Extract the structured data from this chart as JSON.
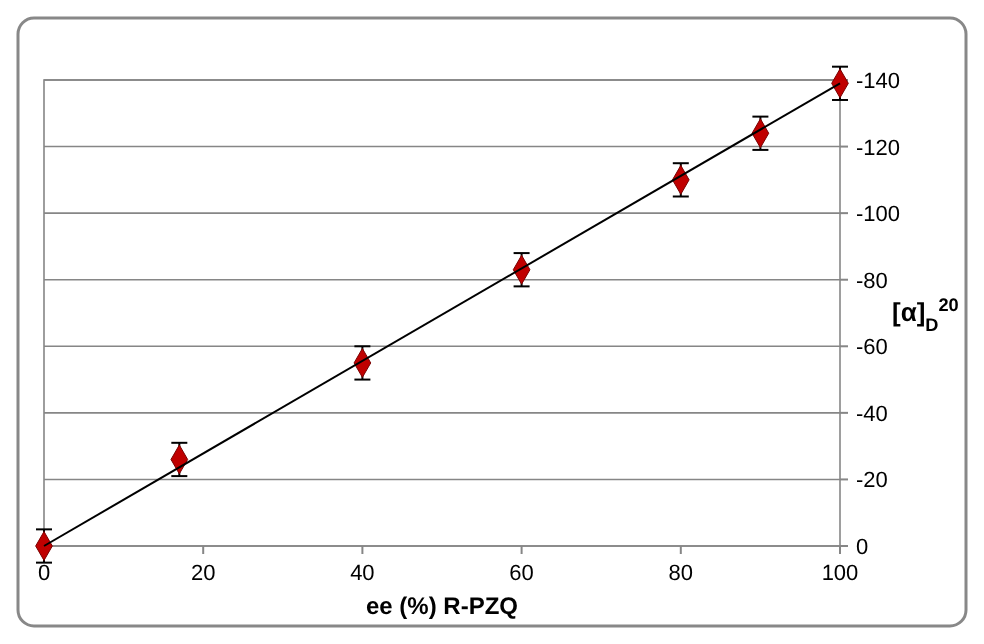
{
  "chart_data": {
    "type": "scatter",
    "xlabel": "ee (%) R-PZQ",
    "ylabel": "[α]$_{D}$$^{20}$",
    "xlim": [
      0,
      100
    ],
    "xticks": [
      0,
      20,
      40,
      60,
      80,
      100
    ],
    "ylim": [
      0,
      -140
    ],
    "yticks": [
      0,
      -20,
      -40,
      -60,
      -80,
      -100,
      -120,
      -140
    ],
    "grid": "y",
    "series": [
      {
        "color": "#c00000",
        "marker": "diamond",
        "x": [
          0,
          17,
          40,
          60,
          80,
          90,
          100
        ],
        "values": [
          0,
          -26,
          -55,
          -83,
          -110,
          -124,
          -139
        ],
        "errors": [
          5,
          5,
          5,
          5,
          5,
          5,
          5
        ]
      },
      {
        "type": "line",
        "color": "#000000",
        "marker": "none",
        "line_style": "solid",
        "x": [
          0,
          100
        ],
        "values": [
          0,
          -139
        ]
      }
    ]
  }
}
